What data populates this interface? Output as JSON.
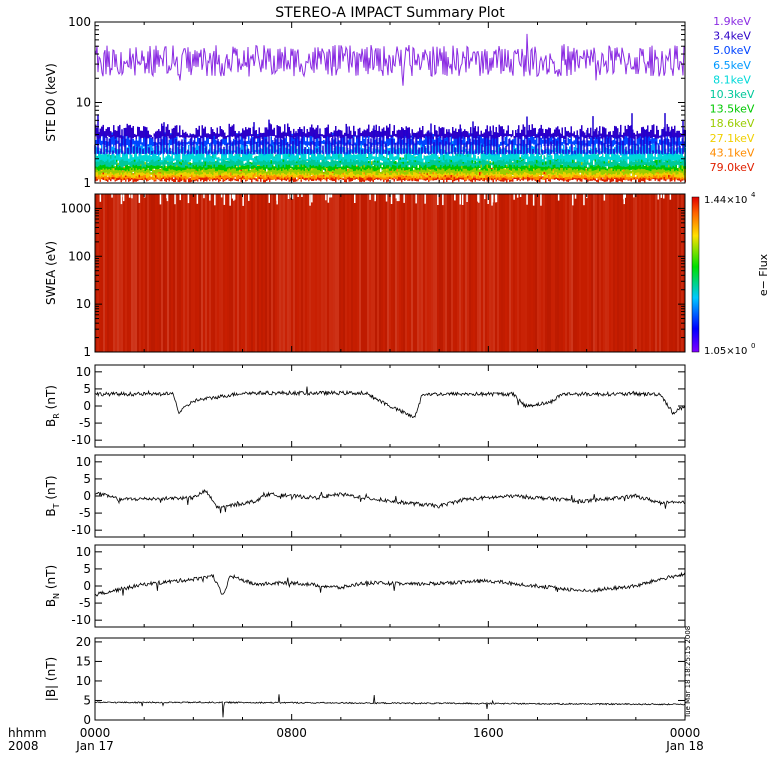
{
  "chart_data": {
    "title": "STEREO-A IMPACT Summary Plot",
    "timestamp": "Tue Mar 18 18:25:15 2008",
    "x_axis": {
      "row_label": "hhmm",
      "year_label": "2008",
      "ticks": [
        {
          "hours": 0,
          "label": "0000",
          "date": "Jan 17"
        },
        {
          "hours": 8,
          "label": "0800",
          "date": ""
        },
        {
          "hours": 16,
          "label": "1600",
          "date": ""
        },
        {
          "hours": 24,
          "label": "0000",
          "date": "Jan 18"
        }
      ],
      "range_hours": [
        0,
        24
      ]
    },
    "panels": [
      {
        "id": "ste",
        "type": "line",
        "ylabel": "STE D0 (keV)",
        "yscale": "log",
        "ylim": [
          1,
          100
        ],
        "tick_labels": [
          "1",
          "10",
          "100"
        ],
        "ticks": [
          1,
          10,
          100
        ],
        "legend_position": "right",
        "series": [
          {
            "name": "1.9keV",
            "color": "#8a2be2",
            "level": 33
          },
          {
            "name": "3.4keV",
            "color": "#2d00c8",
            "level": 3.5
          },
          {
            "name": "5.0keV",
            "color": "#0044ff",
            "level": 2.8
          },
          {
            "name": "6.5keV",
            "color": "#0099ff",
            "level": 2.2
          },
          {
            "name": "8.1keV",
            "color": "#00d8d8",
            "level": 1.8
          },
          {
            "name": "10.3keV",
            "color": "#00c89a",
            "level": 1.55
          },
          {
            "name": "13.5keV",
            "color": "#00c800",
            "level": 1.4
          },
          {
            "name": "18.6keV",
            "color": "#9acd00",
            "level": 1.25
          },
          {
            "name": "27.1keV",
            "color": "#f0d000",
            "level": 1.15
          },
          {
            "name": "43.1keV",
            "color": "#ff8c00",
            "level": 1.08
          },
          {
            "name": "79.0keV",
            "color": "#e02000",
            "level": 1.02
          }
        ]
      },
      {
        "id": "swea",
        "type": "heatmap",
        "ylabel": "SWEA (eV)",
        "yscale": "log",
        "ylim": [
          1,
          2000
        ],
        "tick_labels": [
          "1",
          "10",
          "100",
          "1000"
        ],
        "ticks": [
          1,
          10,
          100,
          1000
        ],
        "colorbar": {
          "label": "e− Flux",
          "max_label": "1.44×10",
          "max_exp": "4",
          "min_label": "1.05×10",
          "min_exp": "0"
        }
      },
      {
        "id": "br",
        "type": "line",
        "ylabel": "B",
        "ylabel_sub": "R",
        "ylabel_unit": " (nT)",
        "ylim": [
          -12,
          12
        ],
        "ticks": [
          -10,
          -5,
          0,
          5,
          10
        ],
        "tick_labels": [
          "-10",
          "-5",
          "0",
          "5",
          "10"
        ],
        "segments": [
          [
            0,
            3.5
          ],
          [
            3.2,
            3.5
          ],
          [
            3.4,
            -2
          ],
          [
            4,
            1.5
          ],
          [
            6,
            3.8
          ],
          [
            11,
            3.8
          ],
          [
            12,
            0
          ],
          [
            13,
            -3.5
          ],
          [
            13.3,
            3.5
          ],
          [
            17,
            3.5
          ],
          [
            17.5,
            0
          ],
          [
            18.5,
            1
          ],
          [
            19,
            3.5
          ],
          [
            23,
            3.5
          ],
          [
            23.5,
            -2
          ],
          [
            24,
            0
          ]
        ]
      },
      {
        "id": "bt",
        "type": "line",
        "ylabel": "B",
        "ylabel_sub": "T",
        "ylabel_unit": " (nT)",
        "ylim": [
          -12,
          12
        ],
        "ticks": [
          -10,
          -5,
          0,
          5,
          10
        ],
        "tick_labels": [
          "-10",
          "-5",
          "0",
          "5",
          "10"
        ],
        "segments": [
          [
            0,
            1
          ],
          [
            1,
            -1
          ],
          [
            4,
            -0.5
          ],
          [
            4.5,
            1.5
          ],
          [
            5,
            -3.5
          ],
          [
            6.5,
            -1.5
          ],
          [
            7,
            0.5
          ],
          [
            9,
            -0.5
          ],
          [
            10,
            0.5
          ],
          [
            12,
            -1.5
          ],
          [
            14,
            -3
          ],
          [
            15,
            -1
          ],
          [
            17,
            0
          ],
          [
            20,
            -1.5
          ],
          [
            22,
            0
          ],
          [
            23,
            -2
          ],
          [
            24,
            -2
          ]
        ]
      },
      {
        "id": "bn",
        "type": "line",
        "ylabel": "B",
        "ylabel_sub": "N",
        "ylabel_unit": " (nT)",
        "ylim": [
          -12,
          12
        ],
        "ticks": [
          -10,
          -5,
          0,
          5,
          10
        ],
        "tick_labels": [
          "-10",
          "-5",
          "0",
          "5",
          "10"
        ],
        "segments": [
          [
            0,
            -2.5
          ],
          [
            1,
            -1
          ],
          [
            2,
            0.5
          ],
          [
            4,
            2
          ],
          [
            4.8,
            3
          ],
          [
            5.2,
            -3
          ],
          [
            5.5,
            3
          ],
          [
            6.5,
            0.5
          ],
          [
            8,
            1
          ],
          [
            10,
            -0.5
          ],
          [
            11,
            1
          ],
          [
            13,
            0.5
          ],
          [
            16,
            1.5
          ],
          [
            18,
            0
          ],
          [
            20,
            -1.5
          ],
          [
            22,
            0
          ],
          [
            23,
            2
          ],
          [
            24,
            3.5
          ]
        ]
      },
      {
        "id": "bmag",
        "type": "line",
        "ylabel": "|B| (nT)",
        "ylim": [
          0,
          21
        ],
        "ticks": [
          0,
          5,
          10,
          15,
          20
        ],
        "tick_labels": [
          "0",
          "5",
          "10",
          "15",
          "20"
        ],
        "segments": [
          [
            0,
            4.5
          ],
          [
            5.2,
            4.5
          ],
          [
            5.2,
            0
          ],
          [
            5.25,
            4.5
          ],
          [
            24,
            4
          ]
        ]
      }
    ]
  }
}
